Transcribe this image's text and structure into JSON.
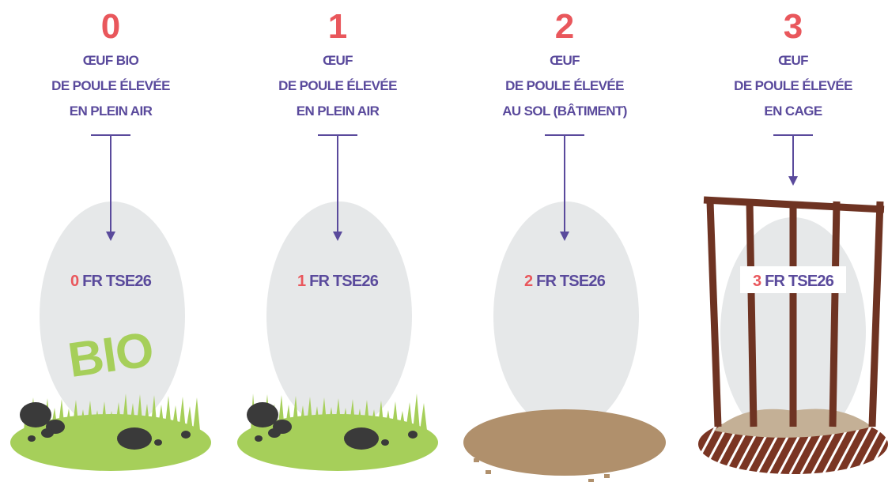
{
  "columns": [
    {
      "number": "0",
      "lines": [
        "ŒUF BIO",
        "DE POULE ÉLEVÉE",
        "EN PLEIN AIR"
      ],
      "code_digit": "0",
      "code": "FR TSE26",
      "badge": "BIO"
    },
    {
      "number": "1",
      "lines": [
        "ŒUF",
        "DE POULE ÉLEVÉE",
        "EN PLEIN AIR"
      ],
      "code_digit": "1",
      "code": "FR TSE26"
    },
    {
      "number": "2",
      "lines": [
        "ŒUF",
        "DE POULE ÉLEVÉE",
        "AU SOL (BÂTIMENT)"
      ],
      "code_digit": "2",
      "code": "FR TSE26"
    },
    {
      "number": "3",
      "lines": [
        "ŒUF",
        "DE POULE ÉLEVÉE",
        "EN CAGE"
      ],
      "code_digit": "3",
      "code": "FR TSE26"
    }
  ]
}
